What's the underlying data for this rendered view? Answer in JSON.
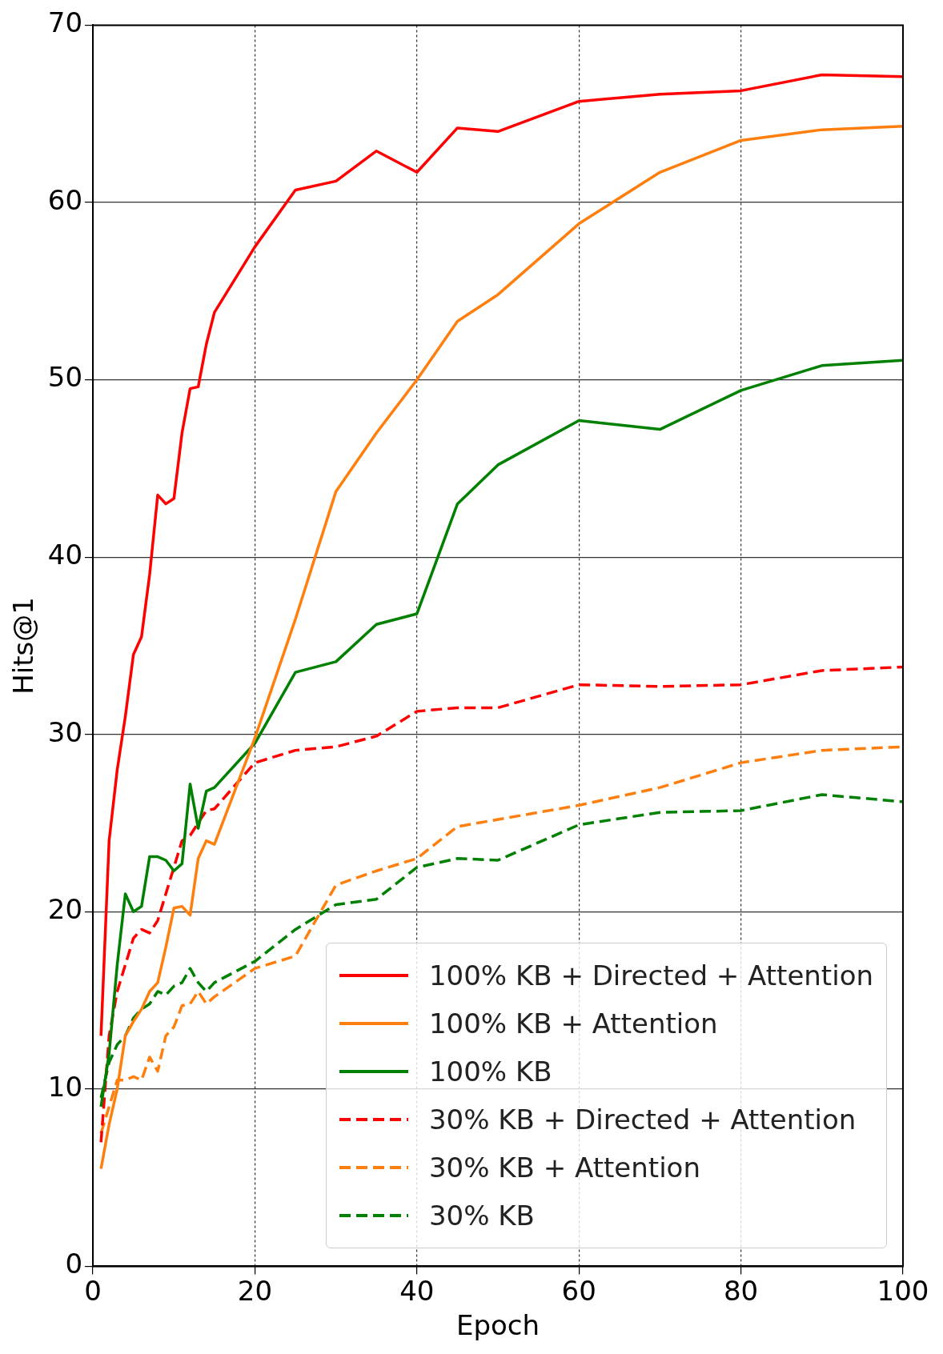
{
  "chart_data": {
    "type": "line",
    "xlabel": "Epoch",
    "ylabel": "Hits@1",
    "xlim": [
      0,
      100
    ],
    "xticks": [
      0,
      20,
      40,
      60,
      80,
      100
    ],
    "ylim": [
      0,
      70
    ],
    "yticks": [
      0,
      10,
      20,
      30,
      40,
      50,
      60,
      70
    ],
    "grid": true,
    "legend": "bottom right",
    "marker": "none",
    "x": [
      1,
      2,
      3,
      4,
      5,
      6,
      7,
      8,
      9,
      10,
      11,
      12,
      13,
      14,
      15,
      20,
      25,
      30,
      35,
      40,
      45,
      50,
      60,
      70,
      80,
      90,
      100
    ],
    "series": [
      {
        "name": "100% KB + Directed + Attention",
        "color": "#ff0000",
        "line_style": "solid",
        "values": [
          13,
          24,
          28,
          31,
          34.5,
          35.5,
          39,
          43.5,
          43,
          43.3,
          47,
          49.5,
          49.6,
          52,
          53.8,
          57.5,
          60.7,
          61.2,
          62.9,
          61.7,
          64.2,
          64,
          65.7,
          66.1,
          66.3,
          67.2,
          67.1
        ]
      },
      {
        "name": "100% KB + Attention",
        "color": "#ff7f0e",
        "line_style": "solid",
        "values": [
          5.5,
          8,
          10,
          13,
          13.8,
          14.5,
          15.5,
          16,
          18,
          20.2,
          20.3,
          19.8,
          23,
          24,
          23.8,
          29.8,
          36.5,
          43.7,
          47,
          50,
          53.3,
          54.8,
          58.8,
          61.7,
          63.5,
          64.1,
          64.3
        ]
      },
      {
        "name": "100% KB",
        "color": "#008000",
        "line_style": "solid",
        "values": [
          9,
          12,
          17,
          21,
          20,
          20.3,
          23.1,
          23.1,
          22.9,
          22.3,
          22.7,
          27.2,
          24.7,
          26.8,
          27,
          29.5,
          33.5,
          34.1,
          36.2,
          36.8,
          43,
          45.2,
          47.7,
          47.2,
          49.4,
          50.8,
          51.1
        ]
      },
      {
        "name": "30% KB + Directed + Attention",
        "color": "#ff0000",
        "line_style": "dashed",
        "values": [
          7,
          13,
          15.5,
          17,
          18.5,
          19,
          18.8,
          19.5,
          21,
          22.5,
          24,
          24.3,
          25,
          25.7,
          25.8,
          28.4,
          29.1,
          29.3,
          29.9,
          31.3,
          31.5,
          31.5,
          32.8,
          32.7,
          32.8,
          33.6,
          33.8
        ]
      },
      {
        "name": "30% KB + Attention",
        "color": "#ff7f0e",
        "line_style": "dashed",
        "values": [
          7.5,
          9,
          10.5,
          10.5,
          10.7,
          10.5,
          11.8,
          11,
          13,
          13.5,
          14.7,
          14.8,
          15.5,
          14.8,
          15.2,
          16.8,
          17.5,
          21.5,
          22.3,
          23,
          24.8,
          25.2,
          26,
          27,
          28.4,
          29.1,
          29.3
        ]
      },
      {
        "name": "30% KB",
        "color": "#008000",
        "line_style": "dashed",
        "values": [
          9.5,
          11.5,
          12.5,
          13,
          14,
          14.5,
          14.8,
          15.5,
          15.3,
          15.8,
          16,
          16.8,
          16,
          15.5,
          16,
          17.2,
          19,
          20.4,
          20.7,
          22.5,
          23,
          22.9,
          24.9,
          25.6,
          25.7,
          26.6,
          26.2
        ]
      }
    ]
  }
}
